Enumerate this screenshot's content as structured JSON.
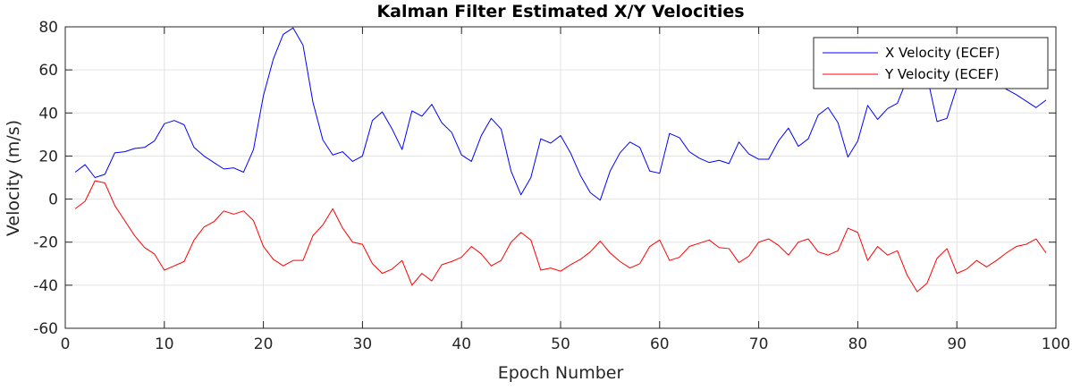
{
  "chart_data": {
    "type": "line",
    "title": "Kalman Filter Estimated X/Y Velocities",
    "xlabel": "Epoch Number",
    "ylabel": "Velocity (m/s)",
    "xlim": [
      0,
      100
    ],
    "ylim": [
      -60,
      80
    ],
    "xticks": [
      0,
      10,
      20,
      30,
      40,
      50,
      60,
      70,
      80,
      90,
      100
    ],
    "yticks": [
      -60,
      -40,
      -20,
      0,
      20,
      40,
      60,
      80
    ],
    "grid": true,
    "legend_position": "top-right",
    "x": [
      1,
      2,
      3,
      4,
      5,
      6,
      7,
      8,
      9,
      10,
      11,
      12,
      13,
      14,
      15,
      16,
      17,
      18,
      19,
      20,
      21,
      22,
      23,
      24,
      25,
      26,
      27,
      28,
      29,
      30,
      31,
      32,
      33,
      34,
      35,
      36,
      37,
      38,
      39,
      40,
      41,
      42,
      43,
      44,
      45,
      46,
      47,
      48,
      49,
      50,
      51,
      52,
      53,
      54,
      55,
      56,
      57,
      58,
      59,
      60,
      61,
      62,
      63,
      64,
      65,
      66,
      67,
      68,
      69,
      70,
      71,
      72,
      73,
      74,
      75,
      76,
      77,
      78,
      79,
      80,
      81,
      82,
      83,
      84,
      85,
      86,
      87,
      88,
      89,
      90,
      91,
      92,
      93,
      94,
      95,
      96,
      97,
      98,
      99
    ],
    "series": [
      {
        "name": "X Velocity (ECEF)",
        "color": "#0000ff",
        "values": [
          12.5,
          16,
          10,
          11.5,
          21.5,
          22,
          23.5,
          24,
          27,
          35,
          36.5,
          34.5,
          24,
          20,
          17,
          14,
          14.5,
          12.5,
          23,
          48,
          65,
          76.5,
          79.5,
          71.5,
          45,
          27.5,
          20.5,
          22,
          17.5,
          20,
          36.5,
          40.5,
          32.5,
          23,
          41,
          38.5,
          44,
          35.5,
          31,
          20.5,
          17.5,
          29.5,
          37.5,
          32.5,
          13,
          2,
          10,
          28,
          26,
          29.5,
          21.5,
          11,
          3,
          -0.5,
          13,
          21.5,
          26.5,
          24,
          13,
          12,
          30.5,
          28.5,
          22,
          19,
          17,
          18,
          16.5,
          26.5,
          21,
          18.5,
          18.5,
          27,
          33,
          24.5,
          28,
          39,
          42.5,
          35.5,
          19.5,
          27,
          43.5,
          37,
          42,
          44.5,
          56,
          61,
          57,
          36,
          37.5,
          52,
          57,
          59,
          56.5,
          54,
          51,
          48.5,
          45.5,
          42.5,
          46
        ]
      },
      {
        "name": "Y Velocity (ECEF)",
        "color": "#ff0000",
        "values": [
          -4.5,
          -1,
          8.5,
          7.5,
          -3,
          -10,
          -17,
          -22.5,
          -25.5,
          -33,
          -31,
          -29,
          -19,
          -13,
          -10.5,
          -5.5,
          -7,
          -5.5,
          -10,
          -22,
          -28,
          -31,
          -28.5,
          -28.5,
          -17,
          -12,
          -4.5,
          -13.5,
          -20,
          -21,
          -30,
          -34.5,
          -32.5,
          -28.5,
          -40,
          -34.5,
          -38,
          -30.5,
          -29,
          -27,
          -22,
          -25.5,
          -31,
          -28.5,
          -20,
          -15.5,
          -19,
          -33,
          -32,
          -33.5,
          -30.5,
          -28,
          -24.5,
          -19.5,
          -25,
          -29,
          -32,
          -30,
          -22,
          -19,
          -28.5,
          -27,
          -22,
          -20.5,
          -19,
          -22.5,
          -23,
          -29.5,
          -26.5,
          -20,
          -18.5,
          -21.5,
          -26,
          -20,
          -18.5,
          -24.5,
          -26,
          -24,
          -13.5,
          -15.5,
          -28.5,
          -22,
          -26,
          -24,
          -35.5,
          -43,
          -39,
          -27.5,
          -23,
          -34.5,
          -32.5,
          -28.5,
          -31.5,
          -28.5,
          -25,
          -22,
          -21,
          -18.5,
          -25
        ]
      }
    ]
  }
}
